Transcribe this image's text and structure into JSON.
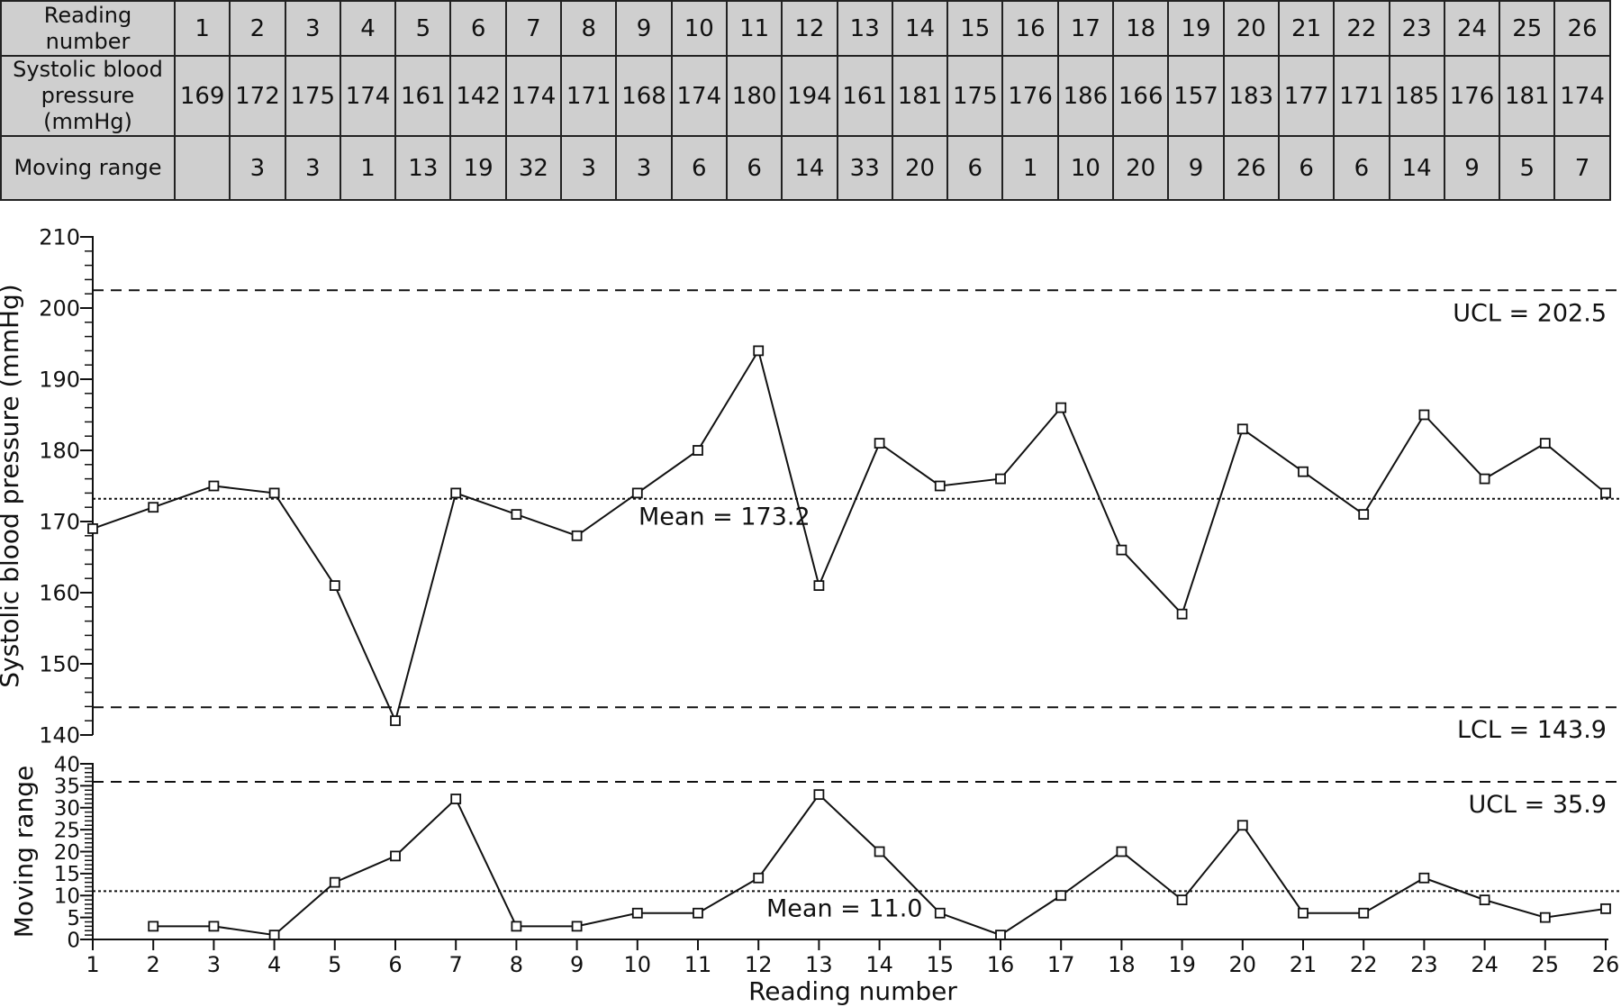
{
  "table": {
    "row_labels": [
      "Reading\nnumber",
      "Systolic blood\npressure (mmHg)",
      "Moving range"
    ],
    "reading_numbers": [
      "1",
      "2",
      "3",
      "4",
      "5",
      "6",
      "7",
      "8",
      "9",
      "10",
      "11",
      "12",
      "13",
      "14",
      "15",
      "16",
      "17",
      "18",
      "19",
      "20",
      "21",
      "22",
      "23",
      "24",
      "25",
      "26"
    ],
    "systolic": [
      "169",
      "172",
      "175",
      "174",
      "161",
      "142",
      "174",
      "171",
      "168",
      "174",
      "180",
      "194",
      "161",
      "181",
      "175",
      "176",
      "186",
      "166",
      "157",
      "183",
      "177",
      "171",
      "185",
      "176",
      "181",
      "174"
    ],
    "moving_range": [
      "",
      "3",
      "3",
      "1",
      "13",
      "19",
      "32",
      "3",
      "3",
      "6",
      "6",
      "14",
      "33",
      "20",
      "6",
      "1",
      "10",
      "20",
      "9",
      "26",
      "6",
      "6",
      "14",
      "9",
      "5",
      "7"
    ]
  },
  "chart_data": [
    {
      "type": "line",
      "ylabel": "Systolic blood pressure (mmHg)",
      "xlabel": "",
      "x": [
        1,
        2,
        3,
        4,
        5,
        6,
        7,
        8,
        9,
        10,
        11,
        12,
        13,
        14,
        15,
        16,
        17,
        18,
        19,
        20,
        21,
        22,
        23,
        24,
        25,
        26
      ],
      "values": [
        169,
        172,
        175,
        174,
        161,
        142,
        174,
        171,
        168,
        174,
        180,
        194,
        161,
        181,
        175,
        176,
        186,
        166,
        157,
        183,
        177,
        171,
        185,
        176,
        181,
        174
      ],
      "ylim": [
        140,
        210
      ],
      "yticks": [
        "140",
        "150",
        "160",
        "170",
        "180",
        "190",
        "200",
        "210"
      ],
      "center_line": {
        "value": 173.2,
        "label": "Mean = 173.2"
      },
      "control_limits": [
        {
          "value": 202.5,
          "label": "UCL = 202.5"
        },
        {
          "value": 143.9,
          "label": "LCL = 143.9"
        }
      ],
      "marker": "square",
      "grid": false
    },
    {
      "type": "line",
      "ylabel": "Moving range",
      "xlabel": "Reading number",
      "x": [
        2,
        3,
        4,
        5,
        6,
        7,
        8,
        9,
        10,
        11,
        12,
        13,
        14,
        15,
        16,
        17,
        18,
        19,
        20,
        21,
        22,
        23,
        24,
        25,
        26
      ],
      "values": [
        3,
        3,
        1,
        13,
        19,
        32,
        3,
        3,
        6,
        6,
        14,
        33,
        20,
        6,
        1,
        10,
        20,
        9,
        26,
        6,
        6,
        14,
        9,
        5,
        7
      ],
      "ylim": [
        0,
        40
      ],
      "yticks": [
        "0",
        "5",
        "10",
        "15",
        "20",
        "25",
        "30",
        "35",
        "40"
      ],
      "xticks": [
        "1",
        "2",
        "3",
        "4",
        "5",
        "6",
        "7",
        "8",
        "9",
        "10",
        "11",
        "12",
        "13",
        "14",
        "15",
        "16",
        "17",
        "18",
        "19",
        "20",
        "21",
        "22",
        "23",
        "24",
        "25",
        "26"
      ],
      "center_line": {
        "value": 11.0,
        "label": "Mean = 11.0"
      },
      "control_limits": [
        {
          "value": 35.9,
          "label": "UCL = 35.9"
        }
      ],
      "marker": "square",
      "grid": false
    }
  ]
}
